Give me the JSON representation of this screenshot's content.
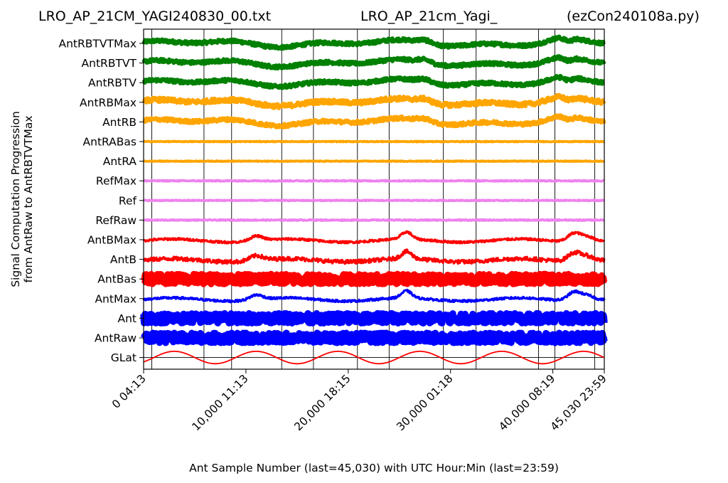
{
  "chart_data": {
    "type": "line",
    "titles": {
      "left": "LRO_AP_21CM_YAGI240830_00.txt",
      "center": "LRO_AP_21cm_Yagi_",
      "right": "(ezCon240108a.py)"
    },
    "xlabel": "Ant Sample Number (last=45,030) with UTC Hour:Min (last=23:59)",
    "ylabel_lines": [
      "Signal Computation Progression",
      "from AntRaw to AntRBTVTMax"
    ],
    "xlim": [
      0,
      45030
    ],
    "x_ticks": [
      {
        "value": 0,
        "label": "0  04:13"
      },
      {
        "value": 10000,
        "label": "10,000  11:13"
      },
      {
        "value": 20000,
        "label": "20,000  18:15"
      },
      {
        "value": 30000,
        "label": "30,000  01:18"
      },
      {
        "value": 40000,
        "label": "40,000  08:19"
      },
      {
        "value": 45030,
        "label": "45,030  23:59"
      }
    ],
    "vertical_lines": [
      800,
      5900,
      8600,
      13500,
      16600,
      20900,
      24000,
      29300,
      32500,
      38600,
      40200,
      44100
    ],
    "series": [
      {
        "name": "AntRBTVTMax",
        "color": "#008000",
        "pattern": "slow",
        "noise": 0.2
      },
      {
        "name": "AntRBTVT",
        "color": "#008000",
        "pattern": "slow",
        "noise": 0.2
      },
      {
        "name": "AntRBTV",
        "color": "#008000",
        "pattern": "slow",
        "noise": 0.2
      },
      {
        "name": "AntRBMax",
        "color": "#ffa500",
        "pattern": "slow",
        "noise": 0.25
      },
      {
        "name": "AntRB",
        "color": "#ffa500",
        "pattern": "slow",
        "noise": 0.2
      },
      {
        "name": "AntRABas",
        "color": "#ffa500",
        "pattern": "flat",
        "noise": 0.05
      },
      {
        "name": "AntRA",
        "color": "#ffa500",
        "pattern": "flat",
        "noise": 0.05
      },
      {
        "name": "RefMax",
        "color": "#ee82ee",
        "pattern": "flat",
        "noise": 0.06
      },
      {
        "name": "Ref",
        "color": "#ee82ee",
        "pattern": "flat",
        "noise": 0.05
      },
      {
        "name": "RefRaw",
        "color": "#ee82ee",
        "pattern": "flat",
        "noise": 0.06
      },
      {
        "name": "AntBMax",
        "color": "#ff0000",
        "pattern": "bumps",
        "noise": 0.12
      },
      {
        "name": "AntB",
        "color": "#ff0000",
        "pattern": "bumps",
        "noise": 0.22
      },
      {
        "name": "AntBas",
        "color": "#ff0000",
        "pattern": "noisy",
        "noise": 0.55
      },
      {
        "name": "AntMax",
        "color": "#0000ff",
        "pattern": "bumps",
        "noise": 0.12
      },
      {
        "name": "Ant",
        "color": "#0000ff",
        "pattern": "noisy",
        "noise": 0.55
      },
      {
        "name": "AntRaw",
        "color": "#0000ff",
        "pattern": "noisy",
        "noise": 0.55
      },
      {
        "name": "GLat",
        "color": "#ff0000",
        "pattern": "sine",
        "noise": 0
      }
    ],
    "glat_period_samples": 8000,
    "grid": false
  }
}
